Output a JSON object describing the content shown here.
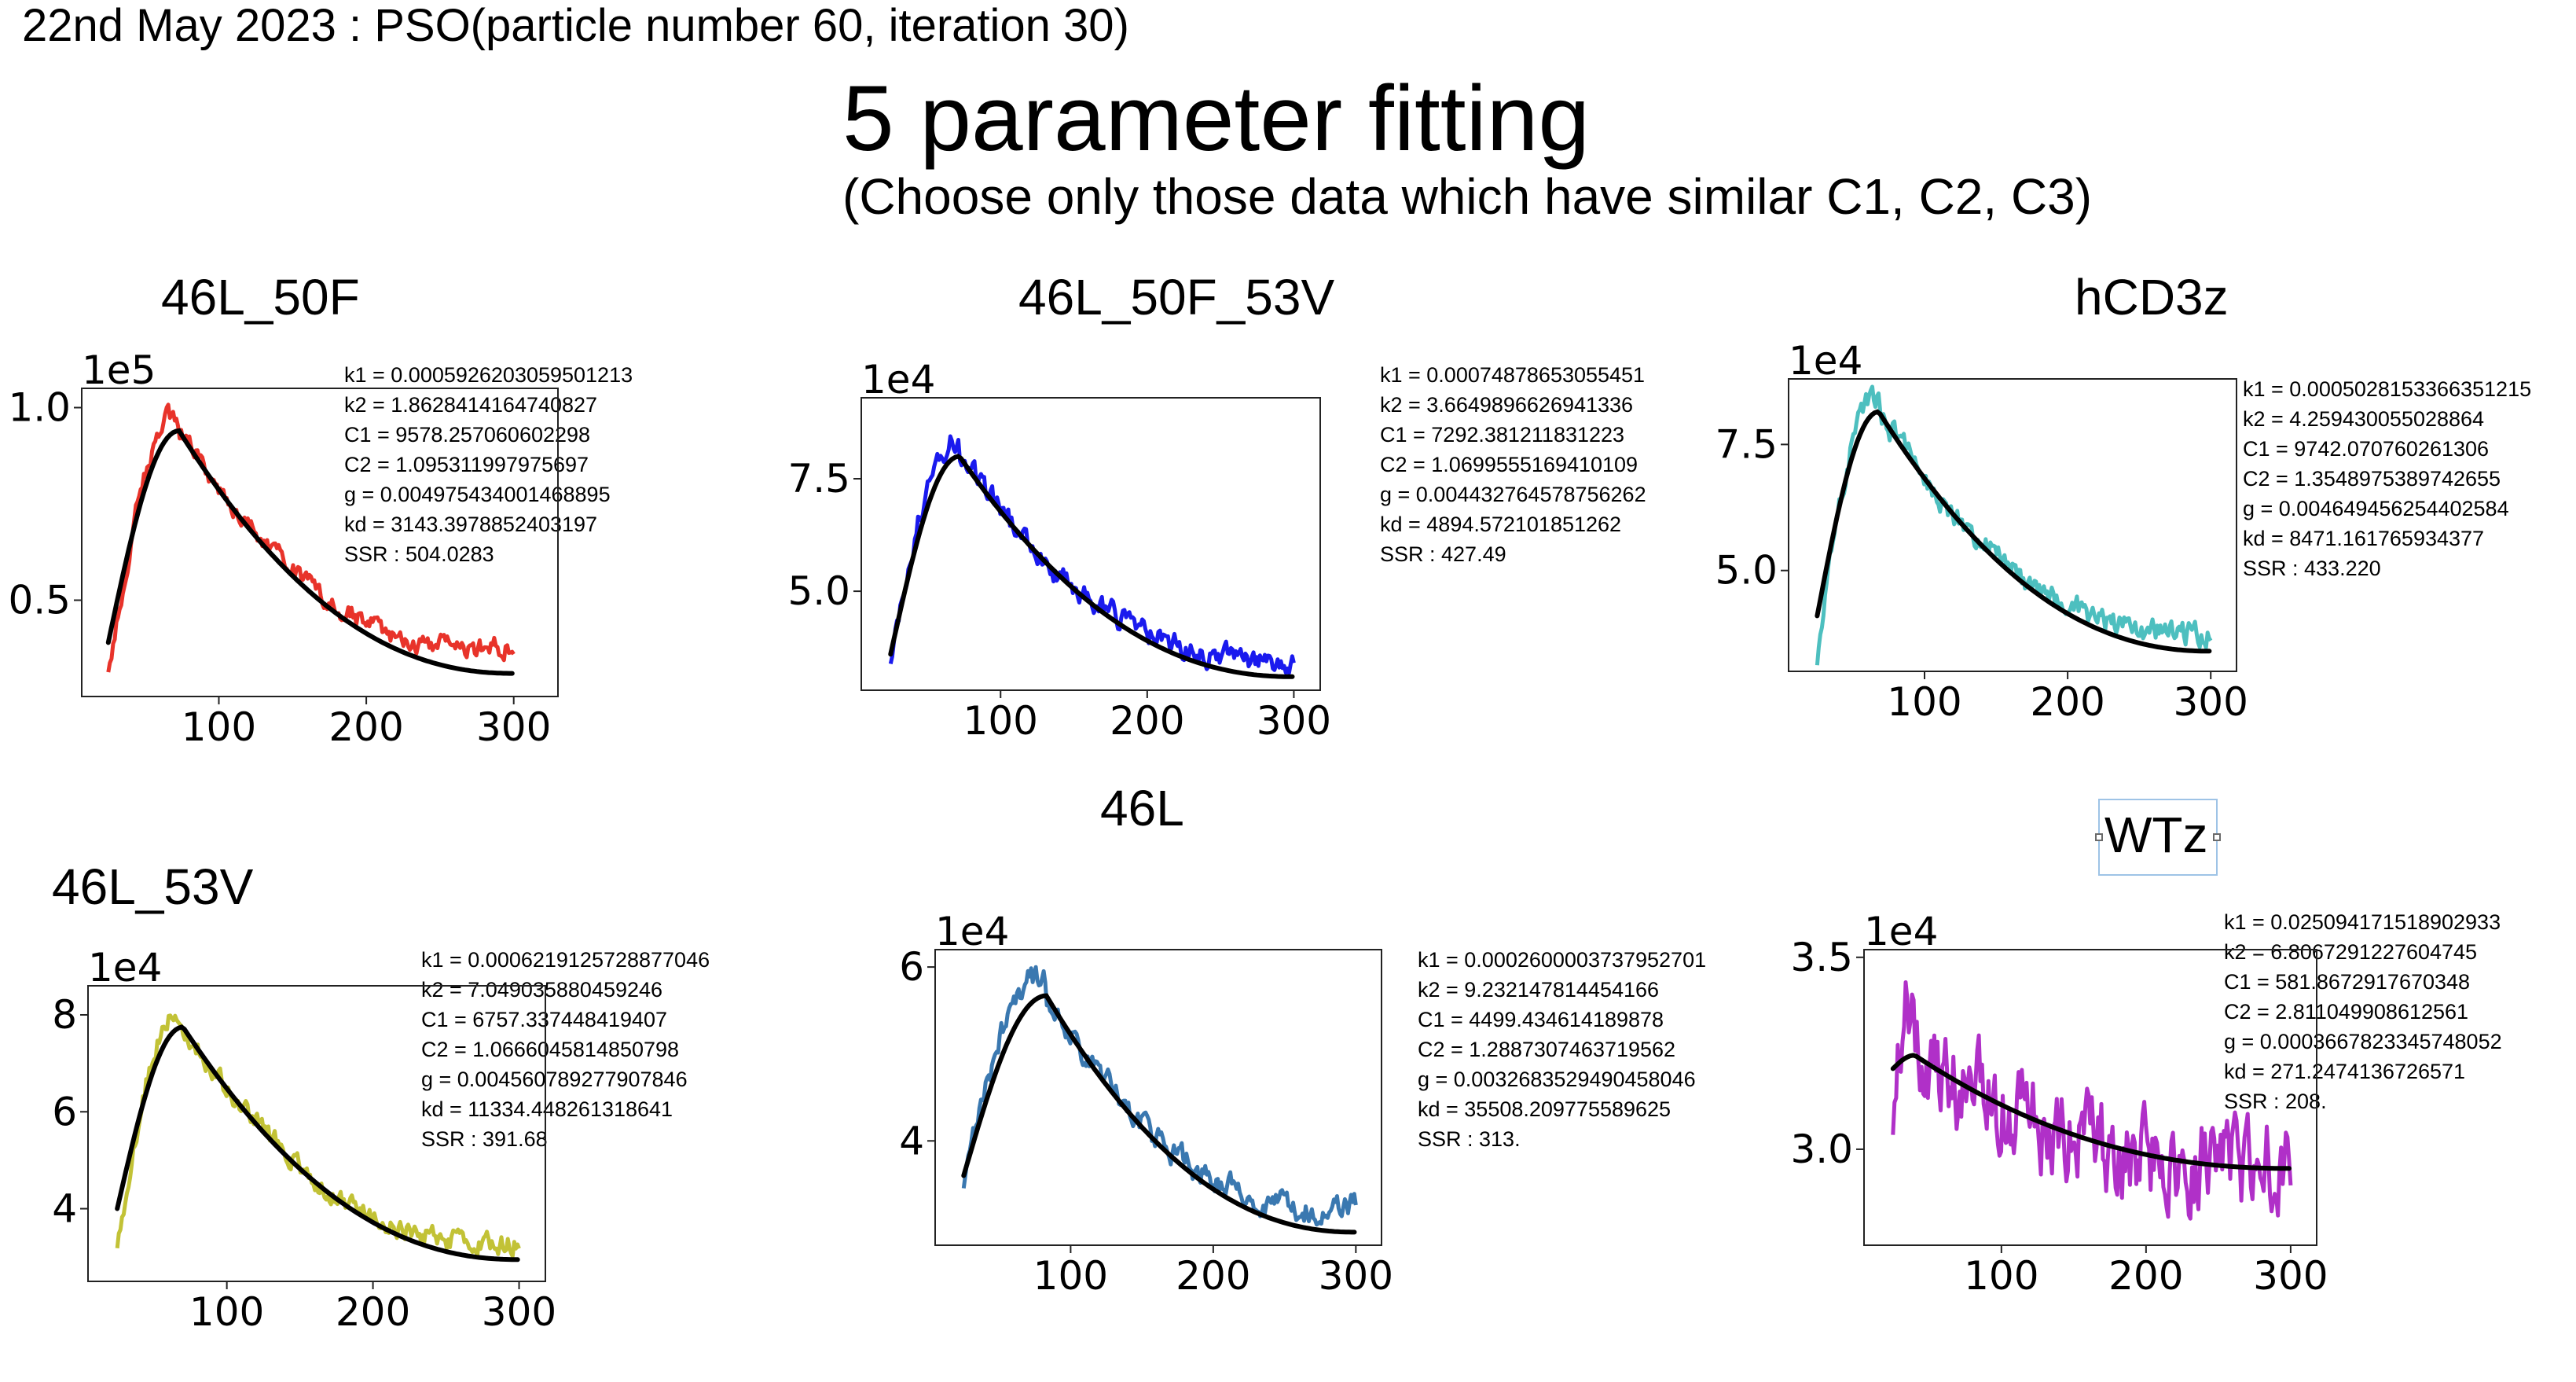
{
  "page": {
    "date_title": "22nd May 2023 : PSO(particle number 60, iteration 30)",
    "main_title": "5 parameter fitting",
    "subtitle": "(Choose only those data which have similar C1, C2, C3)"
  },
  "chart_data": [
    {
      "type": "line",
      "title": "46L_50F",
      "offset_label": "1e5",
      "multiplier": 100000,
      "color": "#e8332a",
      "xlim": [
        7,
        330
      ],
      "ylim": [
        0.25,
        1.05
      ],
      "xticks": [
        100,
        200,
        300
      ],
      "xtick_labels": [
        "100",
        "200",
        "300"
      ],
      "yticks": [
        0.5,
        1.0
      ],
      "ytick_labels": [
        "0.5",
        "1.0"
      ],
      "fit": {
        "start": [
          25,
          0.39
        ],
        "peak_x": 73,
        "peak_y": 0.94,
        "end": [
          300,
          0.31
        ]
      },
      "data_start": 0.3,
      "noise": 0.022,
      "tail_offset": 0.07,
      "params": [
        "k1 = 0.0005926203059501213",
        "k2 = 1.8628414164740827",
        "C1 = 9578.257060602298",
        "C2 = 1.095311997975697",
        "g = 0.004975434001468895",
        "kd = 3143.3978852403197",
        "SSR :  504.0283"
      ]
    },
    {
      "type": "line",
      "title": "46L_50F_53V",
      "offset_label": "1e4",
      "multiplier": 10000,
      "color": "#1a1aee",
      "xlim": [
        5,
        318
      ],
      "ylim": [
        2.8,
        9.3
      ],
      "xticks": [
        100,
        200,
        300
      ],
      "xtick_labels": [
        "100",
        "200",
        "300"
      ],
      "yticks": [
        5.0,
        7.5
      ],
      "ytick_labels": [
        "5.0",
        "7.5"
      ],
      "fit": {
        "start": [
          25,
          3.6
        ],
        "peak_x": 72,
        "peak_y": 8.0,
        "end": [
          300,
          3.1
        ]
      },
      "data_start": 3.2,
      "noise": 0.22,
      "tail_offset": 0.4,
      "params": [
        "k1 = 0.00074878653055451",
        "k2 = 3.6649896626941336",
        "C1 = 7292.381211831223",
        "C2 = 1.0699555169410109",
        "g = 0.004432764578756262",
        "kd = 4894.572101851262",
        "SSR : 427.49"
      ]
    },
    {
      "type": "line",
      "title": "hCD3z",
      "offset_label": "1e4",
      "multiplier": 10000,
      "color": "#4dbfbf",
      "xlim": [
        5,
        318
      ],
      "ylim": [
        3.0,
        8.8
      ],
      "xticks": [
        100,
        200,
        300
      ],
      "xtick_labels": [
        "100",
        "200",
        "300"
      ],
      "yticks": [
        5.0,
        7.5
      ],
      "ytick_labels": [
        "5.0",
        "7.5"
      ],
      "fit": {
        "start": [
          25,
          4.1
        ],
        "peak_x": 68,
        "peak_y": 8.15,
        "end": [
          300,
          3.4
        ]
      },
      "data_start": 3.3,
      "noise": 0.2,
      "tail_offset": 0.4,
      "params": [
        "k1 = 0.0005028153366351215",
        "k2 = 4.259430055028864",
        "C1 = 9742.070760261306",
        "C2 = 1.3548975389742655",
        "g = 0.004649456254402584",
        "kd = 8471.161765934377",
        "SSR : 433.220"
      ]
    },
    {
      "type": "line",
      "title": "46L_53V",
      "offset_label": "1e4",
      "multiplier": 10000,
      "color": "#c2c236",
      "xlim": [
        5,
        318
      ],
      "ylim": [
        2.5,
        8.6
      ],
      "xticks": [
        100,
        200,
        300
      ],
      "xtick_labels": [
        "100",
        "200",
        "300"
      ],
      "yticks": [
        4,
        6,
        8
      ],
      "ytick_labels": [
        "4",
        "6",
        "8"
      ],
      "fit": {
        "start": [
          25,
          4.0
        ],
        "peak_x": 70,
        "peak_y": 7.75,
        "end": [
          300,
          2.95
        ]
      },
      "data_start": 3.3,
      "noise": 0.18,
      "tail_offset": 0.35,
      "params": [
        "k1 = 0.0006219125728877046",
        "k2 = 7.049035880459246",
        "C1 = 6757.337448419407",
        "C2 = 1.0666045814850798",
        "g = 0.004560789277907846",
        "kd = 11334.448261318641",
        "SSR : 391.68"
      ]
    },
    {
      "type": "line",
      "title": "46L",
      "offset_label": "1e4",
      "multiplier": 10000,
      "color": "#3a78b0",
      "xlim": [
        5,
        318
      ],
      "ylim": [
        2.8,
        6.2
      ],
      "xticks": [
        100,
        200,
        300
      ],
      "xtick_labels": [
        "100",
        "200",
        "300"
      ],
      "yticks": [
        4,
        6
      ],
      "ytick_labels": [
        "4",
        "6"
      ],
      "fit": {
        "start": [
          25,
          3.6
        ],
        "peak_x": 83,
        "peak_y": 5.67,
        "end": [
          300,
          2.95
        ]
      },
      "data_start": 3.5,
      "noise": 0.12,
      "tail_offset": 0.3,
      "params": [
        "k1 = 0.0002600003737952701",
        "k2 = 9.232147814454166",
        "C1 = 4499.434614189878",
        "C2 = 1.2887307463719562",
        "g = 0.0032683529490458046",
        "kd = 35508.209775589625",
        "SSR :  313."
      ]
    },
    {
      "type": "line",
      "title": "WTz",
      "offset_label": "1e4",
      "multiplier": 10000,
      "color": "#b030c8",
      "xlim": [
        5,
        318
      ],
      "ylim": [
        2.75,
        3.52
      ],
      "xticks": [
        100,
        200,
        300
      ],
      "xtick_labels": [
        "100",
        "200",
        "300"
      ],
      "yticks": [
        3.0,
        3.5
      ],
      "ytick_labels": [
        "3.0",
        "3.5"
      ],
      "fit": {
        "start": [
          25,
          3.21
        ],
        "peak_x": 40,
        "peak_y": 3.245,
        "end": [
          300,
          2.95
        ]
      },
      "data_start": 3.05,
      "noise": 0.1,
      "tail_offset": 0.0,
      "params": [
        "k1 = 0.025094171518902933",
        "k2 = 6.8067291227604745",
        "C1 = 581.8672917670348",
        "C2 = 2.811049908612561",
        "g = 0.0003667823345748052",
        "kd = 271.2474136726571",
        "SSR :  208."
      ]
    }
  ]
}
